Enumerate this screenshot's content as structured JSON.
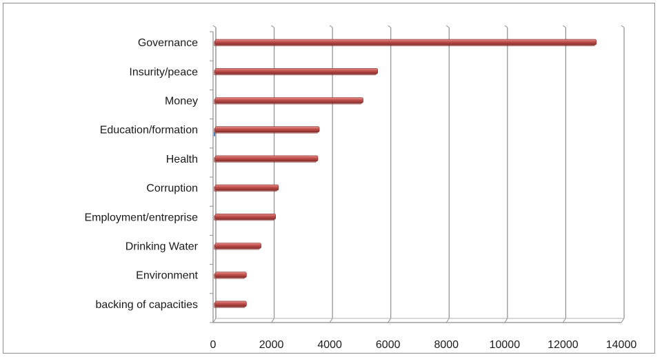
{
  "chart_data": {
    "type": "bar",
    "orientation": "horizontal",
    "title": "",
    "xlabel": "",
    "ylabel": "",
    "categories": [
      "Governance",
      "Insurity/peace",
      "Money",
      "Education/formation",
      "Health",
      "Corruption",
      "Employment/entreprise",
      "Drinking Water",
      "Environment",
      "backing of capacities"
    ],
    "values": [
      13050,
      5550,
      5050,
      3550,
      3500,
      2150,
      2050,
      1550,
      1050,
      1050
    ],
    "xlim": [
      0,
      14000
    ],
    "xticks": [
      "0",
      "2000",
      "4000",
      "6000",
      "8000",
      "10000",
      "12000",
      "14000"
    ],
    "grid": "vertical",
    "legend": "none",
    "bar_color": "#c0504d",
    "bar_highlight": "#e8908c",
    "bar_shadow": "#8b2f2c"
  }
}
